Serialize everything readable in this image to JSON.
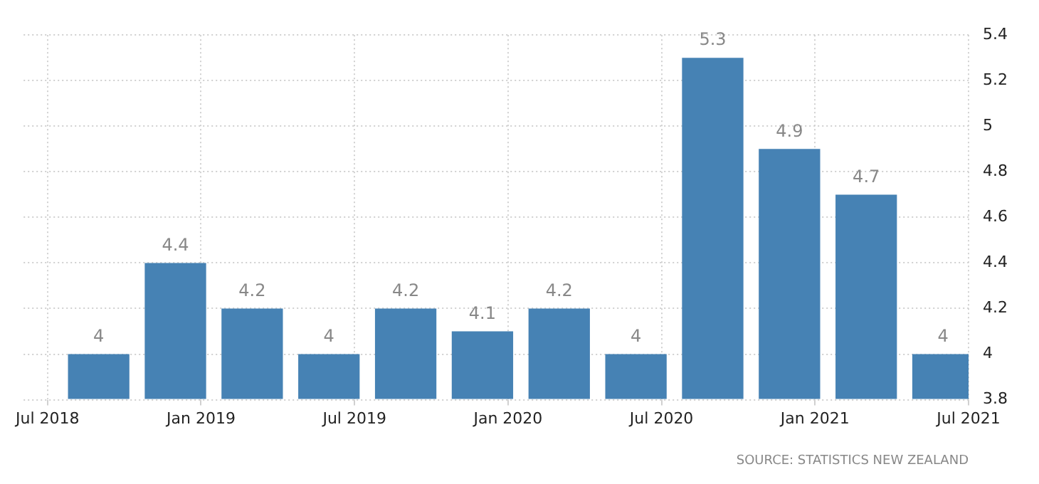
{
  "chart_data": {
    "type": "bar",
    "x": [
      "2018-09",
      "2018-12",
      "2019-03",
      "2019-06",
      "2019-09",
      "2019-12",
      "2020-03",
      "2020-06",
      "2020-09",
      "2020-12",
      "2021-03",
      "2021-06"
    ],
    "values": [
      4,
      4.4,
      4.2,
      4,
      4.2,
      4.1,
      4.2,
      4,
      5.3,
      4.9,
      4.7,
      4
    ],
    "color": "#4682b4",
    "data_labels": true,
    "xlim": [
      "2018-06-03",
      "2021-07-01"
    ],
    "xticks": [
      {
        "value": "2018-07",
        "label": "Jul 2018"
      },
      {
        "value": "2019-01",
        "label": "Jan 2019"
      },
      {
        "value": "2019-07",
        "label": "Jul 2019"
      },
      {
        "value": "2020-01",
        "label": "Jan 2020"
      },
      {
        "value": "2020-07",
        "label": "Jul 2020"
      },
      {
        "value": "2021-01",
        "label": "Jan 2021"
      },
      {
        "value": "2021-07",
        "label": "Jul 2021"
      }
    ],
    "ylim": [
      3.8,
      5.4
    ],
    "yticks": [
      3.8,
      4,
      4.2,
      4.4,
      4.6,
      4.8,
      5,
      5.2,
      5.4
    ],
    "grid": true,
    "annotations": [
      "SOURCE: STATISTICS NEW ZEALAND"
    ]
  }
}
